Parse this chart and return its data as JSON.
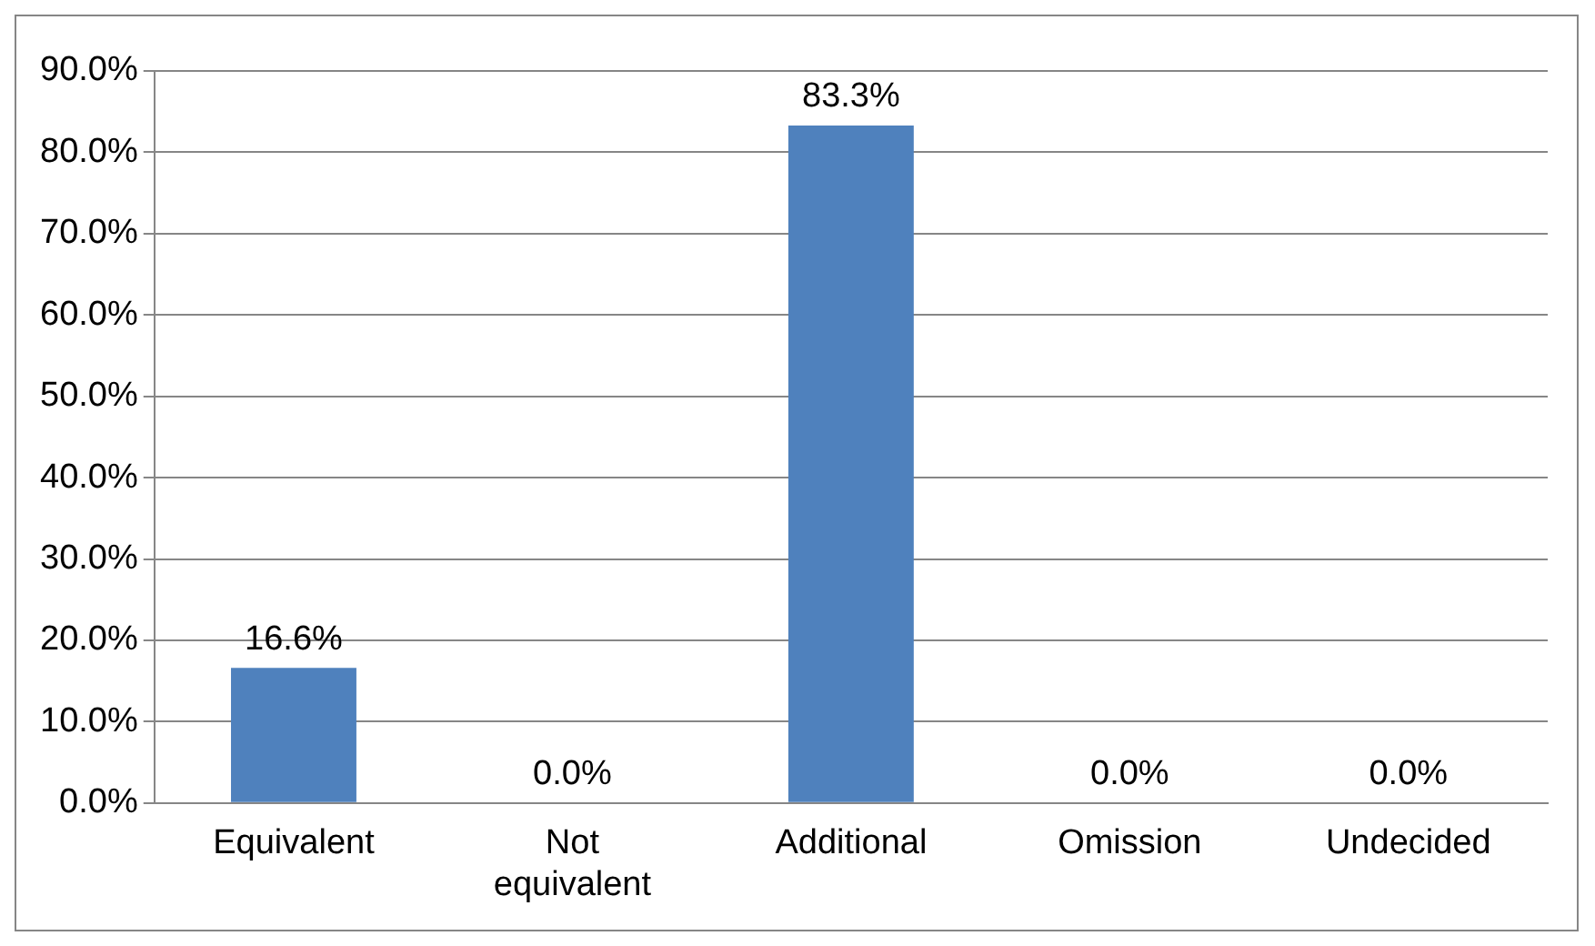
{
  "chart_data": {
    "type": "bar",
    "categories": [
      "Equivalent",
      "Not equivalent",
      "Additional",
      "Omission",
      "Undecided"
    ],
    "values": [
      16.6,
      0,
      83.3,
      0,
      0
    ],
    "value_labels": [
      "16.6%",
      "0.0%",
      "83.3%",
      "0.0%",
      "0.0%"
    ],
    "color": "#4f81bd",
    "ylim": [
      0,
      90
    ],
    "yticks": [
      {
        "value": 0,
        "label": "0.0%"
      },
      {
        "value": 10,
        "label": "10.0%"
      },
      {
        "value": 20,
        "label": "20.0%"
      },
      {
        "value": 30,
        "label": "30.0%"
      },
      {
        "value": 40,
        "label": "40.0%"
      },
      {
        "value": 50,
        "label": "50.0%"
      },
      {
        "value": 60,
        "label": "60.0%"
      },
      {
        "value": 70,
        "label": "70.0%"
      },
      {
        "value": 80,
        "label": "80.0%"
      },
      {
        "value": 90,
        "label": "90.0%"
      }
    ],
    "grid": "y",
    "legend": false
  }
}
